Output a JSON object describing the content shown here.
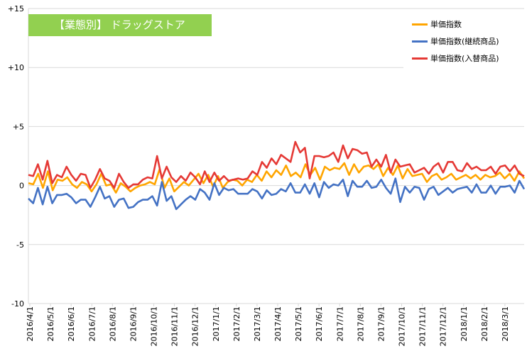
{
  "chart_data": {
    "type": "line",
    "title": "【業態別】 ドラッグストア",
    "ylim": [
      -10,
      15
    ],
    "yticks": [
      "+15",
      "+10",
      "+5",
      "0",
      "-5",
      "-10"
    ],
    "grid": "horizontal",
    "legend_position": "top-right",
    "x_labels": [
      "2016/4/1",
      "2016/5/1",
      "2016/6/1",
      "2016/7/1",
      "2016/8/1",
      "2016/9/1",
      "2016/10/1",
      "2016/11/1",
      "2016/12/1",
      "2017/1/1",
      "2017/2/1",
      "2017/3/1",
      "2017/4/1",
      "2017/5/1",
      "2017/6/1",
      "2017/7/1",
      "2017/8/1",
      "2017/9/1",
      "2017/10/1",
      "2017/11/1",
      "2017/12/1",
      "2018/1/1",
      "2018/2/1",
      "2018/3/1"
    ],
    "series": [
      {
        "name": "単価指数",
        "color": "#ffa500",
        "values": [
          0.2,
          0.1,
          1.0,
          -0.2,
          1.2,
          -0.4,
          0.5,
          0.4,
          0.7,
          0.1,
          -0.2,
          0.3,
          0.1,
          -0.5,
          0.1,
          1.0,
          0.0,
          0.1,
          -0.6,
          0.2,
          -0.1,
          -0.5,
          -0.2,
          0.0,
          0.1,
          0.3,
          0.1,
          1.4,
          -0.2,
          0.6,
          -0.5,
          -0.1,
          0.3,
          0.0,
          0.5,
          1.0,
          0.2,
          0.9,
          -0.1,
          0.8,
          -0.2,
          0.3,
          0.5,
          0.4,
          0.0,
          0.5,
          0.3,
          0.9,
          0.4,
          1.2,
          0.7,
          1.3,
          0.9,
          1.7,
          0.8,
          1.1,
          0.7,
          1.8,
          0.9,
          1.5,
          0.5,
          1.6,
          1.3,
          1.5,
          1.4,
          1.9,
          0.9,
          1.8,
          1.1,
          1.6,
          1.7,
          1.4,
          1.8,
          0.8,
          1.5,
          0.9,
          1.7,
          0.6,
          1.4,
          0.8,
          0.9,
          1.0,
          0.3,
          0.8,
          1.0,
          0.5,
          0.7,
          1.0,
          0.5,
          0.7,
          0.9,
          0.6,
          0.9,
          0.5,
          0.9,
          0.7,
          0.8,
          1.1,
          0.6,
          1.0,
          0.4,
          1.2,
          0.6
        ]
      },
      {
        "name": "単価指数(継続商品)",
        "color": "#4472c4",
        "values": [
          -1.1,
          -1.5,
          -0.2,
          -1.6,
          -0.1,
          -1.5,
          -0.8,
          -0.8,
          -0.7,
          -1.0,
          -1.5,
          -1.2,
          -1.2,
          -1.8,
          -1.0,
          -0.1,
          -1.1,
          -0.9,
          -1.8,
          -1.2,
          -1.1,
          -1.9,
          -1.8,
          -1.4,
          -1.2,
          -1.2,
          -0.9,
          -1.7,
          0.3,
          -1.3,
          -0.9,
          -2.0,
          -1.6,
          -1.2,
          -0.9,
          -1.2,
          -0.3,
          -0.6,
          -1.2,
          0.2,
          -0.8,
          -0.2,
          -0.4,
          -0.3,
          -0.7,
          -0.7,
          -0.7,
          -0.3,
          -0.5,
          -1.1,
          -0.4,
          -0.8,
          -0.7,
          -0.3,
          -0.5,
          0.2,
          -0.6,
          -0.6,
          0.1,
          -0.7,
          0.2,
          -1.0,
          0.3,
          -0.2,
          0.1,
          0.0,
          0.5,
          -0.9,
          0.4,
          -0.1,
          -0.1,
          0.4,
          -0.2,
          -0.1,
          0.5,
          -0.2,
          -0.7,
          0.6,
          -1.4,
          -0.1,
          -0.6,
          -0.1,
          -0.2,
          -1.2,
          -0.3,
          -0.1,
          -0.8,
          -0.5,
          -0.2,
          -0.6,
          -0.3,
          -0.2,
          -0.1,
          -0.6,
          0.1,
          -0.6,
          -0.6,
          0.0,
          -0.7,
          -0.1,
          -0.1,
          0.0,
          -0.6,
          0.4,
          -0.3
        ]
      },
      {
        "name": "単価指数(入替商品)",
        "color": "#e53935",
        "values": [
          0.9,
          0.8,
          1.8,
          0.5,
          2.1,
          0.2,
          0.9,
          0.7,
          1.6,
          0.9,
          0.4,
          1.0,
          0.9,
          -0.2,
          0.5,
          1.4,
          0.6,
          0.4,
          -0.2,
          1.0,
          0.3,
          -0.2,
          0.1,
          0.1,
          0.5,
          0.7,
          0.6,
          2.5,
          0.6,
          1.6,
          0.7,
          0.3,
          0.8,
          0.4,
          1.1,
          0.7,
          0.1,
          1.2,
          0.3,
          1.1,
          0.4,
          0.8,
          0.4,
          0.5,
          0.6,
          0.5,
          0.6,
          1.2,
          0.9,
          2.0,
          1.5,
          2.3,
          1.8,
          2.6,
          2.3,
          2.0,
          3.7,
          2.8,
          3.2,
          0.6,
          2.5,
          2.5,
          2.4,
          2.5,
          2.8,
          2.0,
          3.4,
          2.3,
          3.1,
          3.0,
          2.7,
          2.8,
          1.6,
          2.2,
          1.6,
          2.6,
          1.1,
          2.2,
          1.6,
          1.7,
          1.8,
          1.1,
          1.3,
          1.5,
          1.0,
          1.6,
          1.9,
          1.1,
          2.0,
          2.0,
          1.3,
          1.2,
          1.9,
          1.4,
          1.6,
          1.3,
          1.3,
          1.6,
          1.0,
          1.6,
          1.7,
          1.2,
          1.7,
          1.0,
          0.8
        ]
      }
    ]
  }
}
